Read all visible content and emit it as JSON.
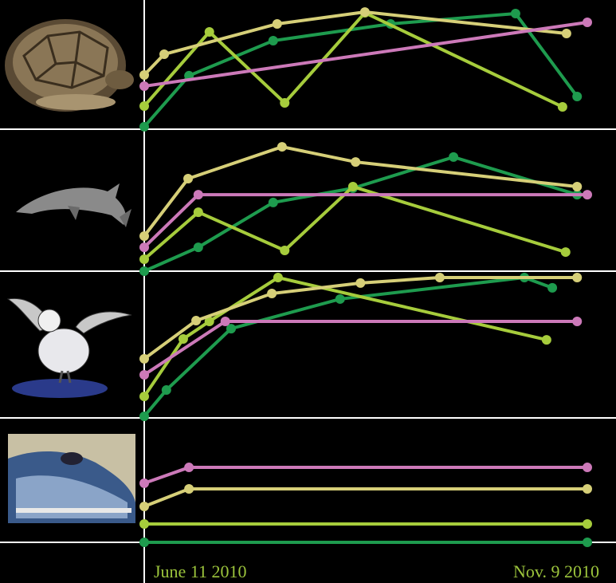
{
  "chart_data": [
    {
      "type": "line",
      "xlim": [
        0,
        100
      ],
      "ylim": [
        0,
        100
      ],
      "series": [
        {
          "color": "#1e9b4e",
          "x": [
            0,
            10.1,
            29.1,
            55.6,
            83.8,
            97.7
          ],
          "values": [
            1.9,
            41.4,
            68.5,
            81.5,
            89.5,
            25.3
          ]
        },
        {
          "color": "#a6cc3c",
          "x": [
            0,
            14.7,
            31.7,
            49.8,
            94.4
          ],
          "values": [
            17.9,
            75.3,
            20.4,
            90.1,
            17.3
          ]
        },
        {
          "color": "#d6cf78",
          "x": [
            0,
            4.5,
            30,
            49.8,
            95.3
          ],
          "values": [
            42,
            58,
            81.5,
            90.7,
            74.1
          ]
        },
        {
          "color": "#cc79b9",
          "x": [
            0,
            100
          ],
          "values": [
            33.3,
            82.7
          ]
        }
      ]
    },
    {
      "type": "line",
      "xlim": [
        0,
        100
      ],
      "ylim": [
        0,
        100
      ],
      "series": [
        {
          "color": "#1e9b4e",
          "x": [
            0,
            12.2,
            29.1,
            47.1,
            69.8,
            97.7
          ],
          "values": [
            0,
            17,
            48.9,
            59.1,
            81.3,
            54.5
          ]
        },
        {
          "color": "#a6cc3c",
          "x": [
            0,
            12.2,
            31.7,
            47.1,
            95.1
          ],
          "values": [
            8.5,
            42,
            14.8,
            60.2,
            13.6
          ]
        },
        {
          "color": "#d6cf78",
          "x": [
            0,
            9.9,
            31.1,
            47.7,
            97.7
          ],
          "values": [
            25,
            65.9,
            88.6,
            77.8,
            60.2
          ]
        },
        {
          "color": "#cc79b9",
          "x": [
            0,
            12.2,
            100
          ],
          "values": [
            17,
            54.5,
            54.5
          ]
        }
      ]
    },
    {
      "type": "line",
      "xlim": [
        0,
        100
      ],
      "ylim": [
        0,
        100
      ],
      "series": [
        {
          "color": "#1e9b4e",
          "x": [
            0,
            5,
            19.6,
            44.2,
            85.8,
            92.1
          ],
          "values": [
            1.1,
            19.2,
            61.5,
            81.9,
            96.7,
            89.6
          ]
        },
        {
          "color": "#a6cc3c",
          "x": [
            0,
            8.8,
            14.7,
            30.2,
            90.8
          ],
          "values": [
            14.8,
            54.4,
            66.5,
            96.7,
            53.8
          ]
        },
        {
          "color": "#d6cf78",
          "x": [
            0,
            11.7,
            28.8,
            48.8,
            66.7,
            97.7
          ],
          "values": [
            40.7,
            67,
            85.7,
            92.9,
            96.7,
            96.7
          ]
        },
        {
          "color": "#cc79b9",
          "x": [
            0,
            18.3,
            97.7
          ],
          "values": [
            29.7,
            66.5,
            66.5
          ]
        }
      ]
    },
    {
      "type": "line",
      "xlim": [
        0,
        100
      ],
      "ylim": [
        0,
        100
      ],
      "series": [
        {
          "color": "#1e9b4e",
          "x": [
            0,
            100
          ],
          "values": [
            0,
            0
          ]
        },
        {
          "color": "#a6cc3c",
          "x": [
            0,
            100
          ],
          "values": [
            14.9,
            14.9
          ]
        },
        {
          "color": "#d6cf78",
          "x": [
            0,
            10.1,
            100
          ],
          "values": [
            29.2,
            43.5,
            43.5
          ]
        },
        {
          "color": "#cc79b9",
          "x": [
            0,
            10.1,
            100
          ],
          "values": [
            48.1,
            61,
            61
          ]
        }
      ]
    }
  ],
  "x_labels": [
    "June 11 2010",
    "Nov. 9 2010"
  ]
}
